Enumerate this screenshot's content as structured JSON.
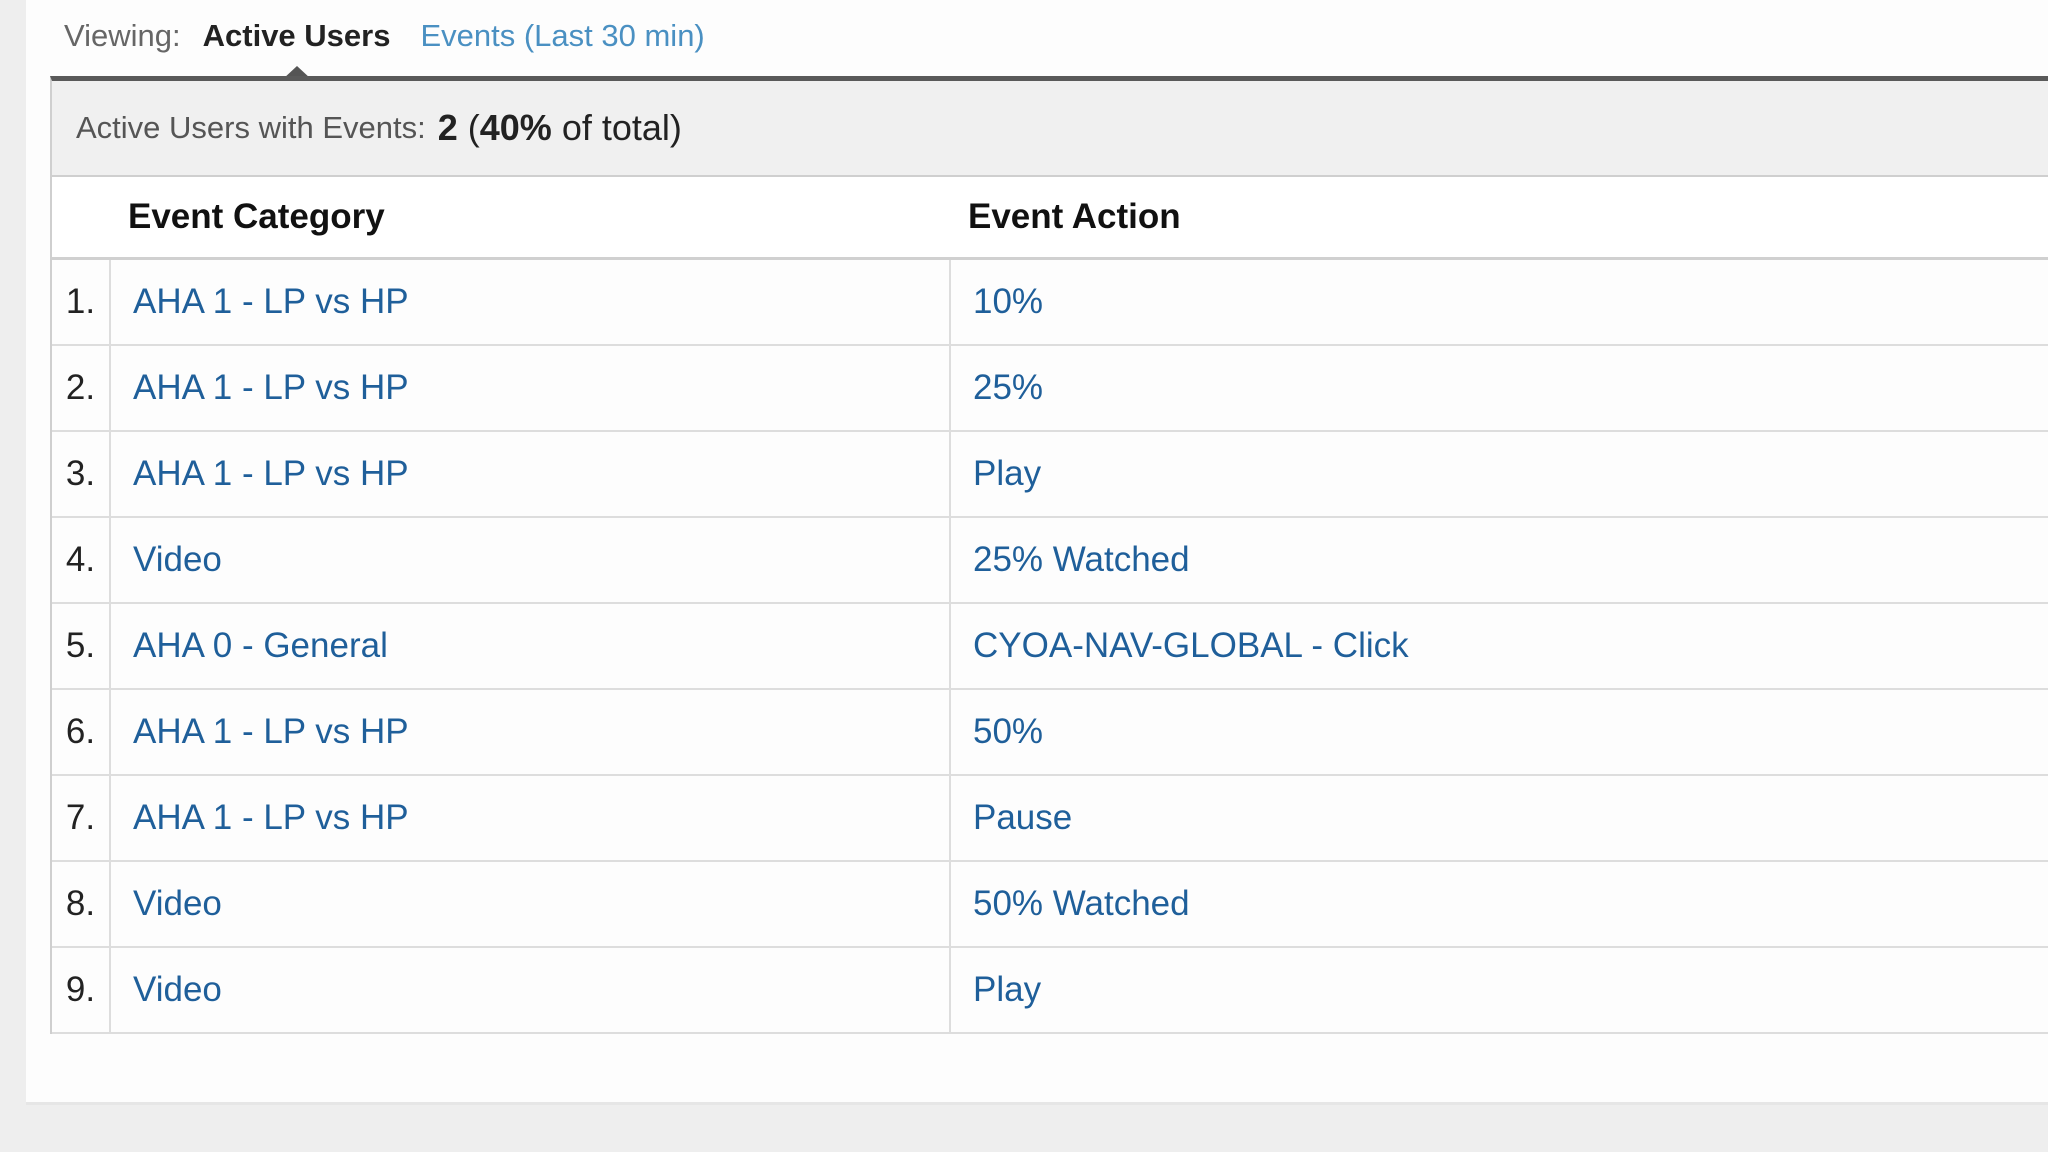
{
  "viewing": {
    "label": "Viewing:",
    "active_tab": "Active Users",
    "other_tab": "Events (Last 30 min)"
  },
  "summary": {
    "label": "Active Users with Events:",
    "count": "2",
    "open_paren": " (",
    "percent": "40%",
    "suffix": " of total)"
  },
  "table": {
    "columns": [
      "Event Category",
      "Event Action"
    ],
    "rows": [
      {
        "index": "1.",
        "category": "AHA 1 - LP vs HP",
        "action": "10%"
      },
      {
        "index": "2.",
        "category": "AHA 1 - LP vs HP",
        "action": "25%"
      },
      {
        "index": "3.",
        "category": "AHA 1 - LP vs HP",
        "action": "Play"
      },
      {
        "index": "4.",
        "category": "Video",
        "action": "25% Watched"
      },
      {
        "index": "5.",
        "category": "AHA 0 - General",
        "action": "CYOA-NAV-GLOBAL - Click"
      },
      {
        "index": "6.",
        "category": "AHA 1 - LP vs HP",
        "action": "50%"
      },
      {
        "index": "7.",
        "category": "AHA 1 - LP vs HP",
        "action": "Pause"
      },
      {
        "index": "8.",
        "category": "Video",
        "action": "50% Watched"
      },
      {
        "index": "9.",
        "category": "Video",
        "action": "Play"
      }
    ]
  },
  "colors": {
    "link": "#1f5f9a",
    "tab_link": "#4a90c2",
    "active_border": "#5a5a5a"
  }
}
